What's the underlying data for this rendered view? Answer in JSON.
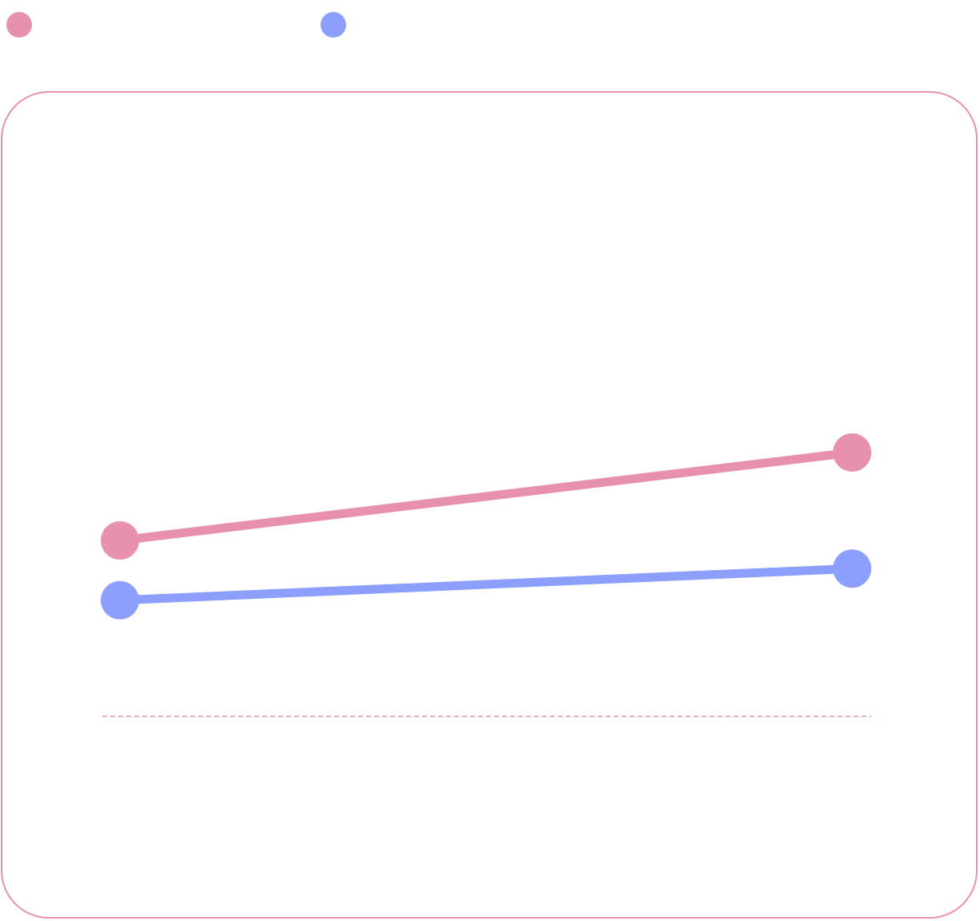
{
  "colors": {
    "series_a": "#E891AC",
    "series_b": "#8C9FFD",
    "frame": "#E891AC",
    "zero_line": "#E891AC",
    "background": "#FFFFFF"
  },
  "legend": {
    "items": [
      {
        "name": "",
        "color": "#E891AC"
      },
      {
        "name": "",
        "color": "#8C9FFD"
      }
    ]
  },
  "chart_data": {
    "type": "line",
    "title": "",
    "xlabel": "",
    "ylabel": "",
    "categories": [
      "",
      ""
    ],
    "series": [
      {
        "name": "",
        "color": "#E891AC",
        "values": [
          0.5,
          0.75
        ]
      },
      {
        "name": "",
        "color": "#8C9FFD",
        "values": [
          0.33,
          0.42
        ]
      }
    ],
    "ylim": [
      -0.5,
      1.5
    ],
    "reference_line": 0,
    "grid": false,
    "legend_position": "top-left"
  }
}
